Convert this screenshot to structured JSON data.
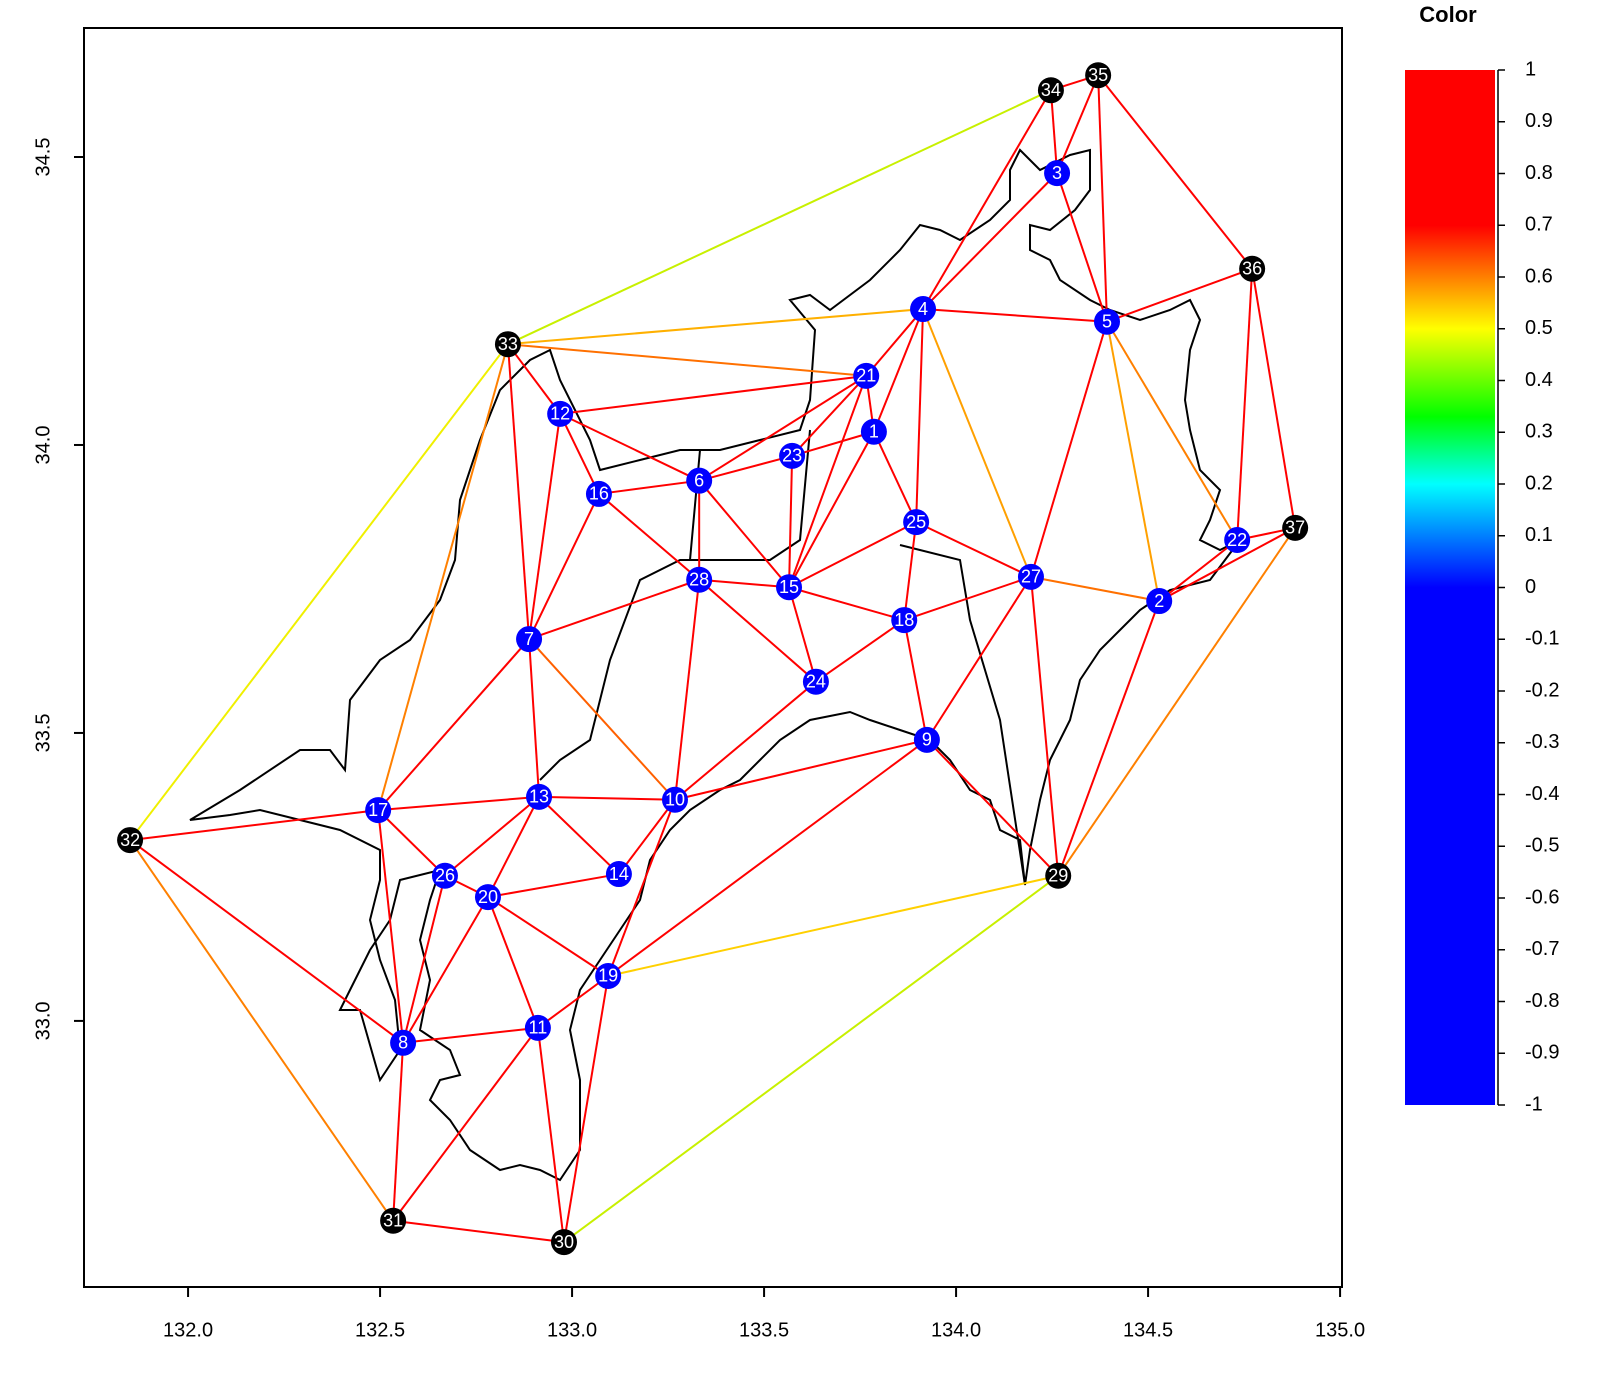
{
  "chart_data": {
    "type": "network",
    "xlim": [
      131.729,
      135.005
    ],
    "ylim": [
      32.538,
      34.724
    ],
    "xticks": [
      {
        "value": 132,
        "label": "132.0"
      },
      132.5,
      {
        "value": 133,
        "label": "133.0"
      },
      133.5,
      {
        "value": 134,
        "label": "134.0"
      },
      134.5,
      {
        "value": 135,
        "label": "135.0"
      }
    ],
    "yticks": [
      {
        "value": 33,
        "label": "33.0"
      },
      33.5,
      {
        "value": 34,
        "label": "34.0"
      },
      34.5
    ],
    "colorbar": {
      "title": "Color",
      "ticks": [
        1,
        0.9,
        0.8,
        0.7,
        0.6,
        0.5,
        0.4,
        0.3,
        0.2,
        0.1,
        0,
        -0.1,
        -0.2,
        -0.3,
        -0.4,
        -0.5,
        -0.6,
        -0.7,
        -0.8,
        -0.9,
        -1
      ],
      "range": [
        -1,
        1
      ],
      "colorscale": [
        {
          "value": -1,
          "color": "#0000ff"
        },
        {
          "value": 0,
          "color": "#0000ff"
        },
        {
          "value": 0.2,
          "color": "#00ffff"
        },
        {
          "value": 0.33,
          "color": "#00ff00"
        },
        {
          "value": 0.5,
          "color": "#ffff00"
        },
        {
          "value": 0.7,
          "color": "#ff0000"
        },
        {
          "value": 1,
          "color": "#ff0000"
        }
      ]
    },
    "nodes": [
      {
        "label": "1",
        "x": 133.786,
        "y": 34.023,
        "color": "#0000ff"
      },
      {
        "label": "2",
        "x": 134.529,
        "y": 33.729,
        "color": "#0000ff"
      },
      {
        "label": "3",
        "x": 134.263,
        "y": 34.472,
        "color": "#0000ff"
      },
      {
        "label": "4",
        "x": 133.914,
        "y": 34.236,
        "color": "#0000ff"
      },
      {
        "label": "5",
        "x": 134.393,
        "y": 34.214,
        "color": "#0000ff"
      },
      {
        "label": "6",
        "x": 133.331,
        "y": 33.938,
        "color": "#0000ff"
      },
      {
        "label": "7",
        "x": 132.888,
        "y": 33.663,
        "color": "#0000ff"
      },
      {
        "label": "8",
        "x": 132.56,
        "y": 32.962,
        "color": "#0000ff"
      },
      {
        "label": "9",
        "x": 133.924,
        "y": 33.488,
        "color": "#0000ff"
      },
      {
        "label": "10",
        "x": 133.268,
        "y": 33.384,
        "color": "#0000ff"
      },
      {
        "label": "11",
        "x": 132.911,
        "y": 32.988,
        "color": "#0000ff"
      },
      {
        "label": "12",
        "x": 132.969,
        "y": 34.054,
        "color": "#0000ff"
      },
      {
        "label": "13",
        "x": 132.914,
        "y": 33.389,
        "color": "#0000ff"
      },
      {
        "label": "14",
        "x": 133.122,
        "y": 33.255,
        "color": "#0000ff"
      },
      {
        "label": "15",
        "x": 133.565,
        "y": 33.753,
        "color": "#0000ff"
      },
      {
        "label": "16",
        "x": 133.07,
        "y": 33.915,
        "color": "#0000ff"
      },
      {
        "label": "17",
        "x": 132.495,
        "y": 33.366,
        "color": "#0000ff"
      },
      {
        "label": "18",
        "x": 133.865,
        "y": 33.696,
        "color": "#0000ff"
      },
      {
        "label": "19",
        "x": 133.094,
        "y": 33.078,
        "color": "#0000ff"
      },
      {
        "label": "20",
        "x": 132.781,
        "y": 33.215,
        "color": "#0000ff"
      },
      {
        "label": "21",
        "x": 133.766,
        "y": 34.12,
        "color": "#0000ff"
      },
      {
        "label": "22",
        "x": 134.732,
        "y": 33.835,
        "color": "#0000ff"
      },
      {
        "label": "23",
        "x": 133.573,
        "y": 33.981,
        "color": "#0000ff"
      },
      {
        "label": "24",
        "x": 133.635,
        "y": 33.589,
        "color": "#0000ff"
      },
      {
        "label": "25",
        "x": 133.896,
        "y": 33.866,
        "color": "#0000ff"
      },
      {
        "label": "26",
        "x": 132.669,
        "y": 33.252,
        "color": "#0000ff"
      },
      {
        "label": "27",
        "x": 134.195,
        "y": 33.771,
        "color": "#0000ff"
      },
      {
        "label": "28",
        "x": 133.331,
        "y": 33.766,
        "color": "#0000ff"
      },
      {
        "label": "29",
        "x": 134.266,
        "y": 33.252,
        "color": "#000000"
      },
      {
        "label": "30",
        "x": 132.979,
        "y": 32.616,
        "color": "#000000"
      },
      {
        "label": "31",
        "x": 132.534,
        "y": 32.653,
        "color": "#000000"
      },
      {
        "label": "32",
        "x": 131.849,
        "y": 33.314,
        "color": "#000000"
      },
      {
        "label": "33",
        "x": 132.833,
        "y": 34.175,
        "color": "#000000"
      },
      {
        "label": "34",
        "x": 134.247,
        "y": 34.616,
        "color": "#000000"
      },
      {
        "label": "35",
        "x": 134.37,
        "y": 34.642,
        "color": "#000000"
      },
      {
        "label": "36",
        "x": 134.771,
        "y": 34.306,
        "color": "#000000"
      },
      {
        "label": "37",
        "x": 134.883,
        "y": 33.856,
        "color": "#000000"
      }
    ],
    "edges": [
      {
        "from": "34",
        "to": "35",
        "color": "#ff0000"
      },
      {
        "from": "34",
        "to": "3",
        "color": "#ff0000"
      },
      {
        "from": "35",
        "to": "3",
        "color": "#ff0000"
      },
      {
        "from": "35",
        "to": "5",
        "color": "#ff0000"
      },
      {
        "from": "35",
        "to": "36",
        "color": "#ff0000"
      },
      {
        "from": "34",
        "to": "4",
        "color": "#ff0000"
      },
      {
        "from": "3",
        "to": "4",
        "color": "#ff0000"
      },
      {
        "from": "3",
        "to": "5",
        "color": "#ff0000"
      },
      {
        "from": "33",
        "to": "34",
        "color": "#c8f000"
      },
      {
        "from": "33",
        "to": "4",
        "color": "#ffb000"
      },
      {
        "from": "33",
        "to": "21",
        "color": "#ff7000"
      },
      {
        "from": "33",
        "to": "12",
        "color": "#ff0000"
      },
      {
        "from": "33",
        "to": "7",
        "color": "#ff0000"
      },
      {
        "from": "33",
        "to": "17",
        "color": "#ff8000"
      },
      {
        "from": "33",
        "to": "32",
        "color": "#f0f000"
      },
      {
        "from": "4",
        "to": "5",
        "color": "#ff0000"
      },
      {
        "from": "4",
        "to": "21",
        "color": "#ff0000"
      },
      {
        "from": "4",
        "to": "1",
        "color": "#ff0000"
      },
      {
        "from": "4",
        "to": "25",
        "color": "#ff0000"
      },
      {
        "from": "4",
        "to": "27",
        "color": "#ffa000"
      },
      {
        "from": "5",
        "to": "36",
        "color": "#ff0000"
      },
      {
        "from": "5",
        "to": "27",
        "color": "#ff0000"
      },
      {
        "from": "5",
        "to": "2",
        "color": "#ffa000"
      },
      {
        "from": "5",
        "to": "22",
        "color": "#ff8000"
      },
      {
        "from": "36",
        "to": "22",
        "color": "#ff0000"
      },
      {
        "from": "36",
        "to": "37",
        "color": "#ff0000"
      },
      {
        "from": "22",
        "to": "37",
        "color": "#ff0000"
      },
      {
        "from": "22",
        "to": "2",
        "color": "#ff0000"
      },
      {
        "from": "2",
        "to": "37",
        "color": "#ff0000"
      },
      {
        "from": "2",
        "to": "27",
        "color": "#ff7000"
      },
      {
        "from": "2",
        "to": "29",
        "color": "#ff0000"
      },
      {
        "from": "37",
        "to": "29",
        "color": "#ff8000"
      },
      {
        "from": "21",
        "to": "12",
        "color": "#ff0000"
      },
      {
        "from": "21",
        "to": "1",
        "color": "#ff0000"
      },
      {
        "from": "21",
        "to": "23",
        "color": "#ff0000"
      },
      {
        "from": "21",
        "to": "6",
        "color": "#ff0000"
      },
      {
        "from": "21",
        "to": "15",
        "color": "#ff0000"
      },
      {
        "from": "1",
        "to": "23",
        "color": "#ff0000"
      },
      {
        "from": "1",
        "to": "15",
        "color": "#ff0000"
      },
      {
        "from": "1",
        "to": "25",
        "color": "#ff0000"
      },
      {
        "from": "12",
        "to": "6",
        "color": "#ff0000"
      },
      {
        "from": "12",
        "to": "16",
        "color": "#ff0000"
      },
      {
        "from": "12",
        "to": "7",
        "color": "#ff0000"
      },
      {
        "from": "6",
        "to": "16",
        "color": "#ff0000"
      },
      {
        "from": "6",
        "to": "23",
        "color": "#ff0000"
      },
      {
        "from": "6",
        "to": "28",
        "color": "#ff0000"
      },
      {
        "from": "6",
        "to": "15",
        "color": "#ff0000"
      },
      {
        "from": "23",
        "to": "15",
        "color": "#ff0000"
      },
      {
        "from": "16",
        "to": "7",
        "color": "#ff0000"
      },
      {
        "from": "16",
        "to": "28",
        "color": "#ff0000"
      },
      {
        "from": "28",
        "to": "15",
        "color": "#ff0000"
      },
      {
        "from": "28",
        "to": "7",
        "color": "#ff0000"
      },
      {
        "from": "28",
        "to": "24",
        "color": "#ff0000"
      },
      {
        "from": "28",
        "to": "10",
        "color": "#ff0000"
      },
      {
        "from": "15",
        "to": "25",
        "color": "#ff0000"
      },
      {
        "from": "15",
        "to": "18",
        "color": "#ff0000"
      },
      {
        "from": "15",
        "to": "24",
        "color": "#ff0000"
      },
      {
        "from": "25",
        "to": "18",
        "color": "#ff0000"
      },
      {
        "from": "25",
        "to": "27",
        "color": "#ff0000"
      },
      {
        "from": "18",
        "to": "27",
        "color": "#ff0000"
      },
      {
        "from": "18",
        "to": "24",
        "color": "#ff0000"
      },
      {
        "from": "18",
        "to": "9",
        "color": "#ff0000"
      },
      {
        "from": "27",
        "to": "9",
        "color": "#ff0000"
      },
      {
        "from": "27",
        "to": "29",
        "color": "#ff0000"
      },
      {
        "from": "24",
        "to": "10",
        "color": "#ff0000"
      },
      {
        "from": "9",
        "to": "10",
        "color": "#ff0000"
      },
      {
        "from": "9",
        "to": "19",
        "color": "#ff0000"
      },
      {
        "from": "9",
        "to": "29",
        "color": "#ff0000"
      },
      {
        "from": "7",
        "to": "17",
        "color": "#ff0000"
      },
      {
        "from": "7",
        "to": "13",
        "color": "#ff0000"
      },
      {
        "from": "7",
        "to": "10",
        "color": "#ff6000"
      },
      {
        "from": "17",
        "to": "13",
        "color": "#ff0000"
      },
      {
        "from": "17",
        "to": "26",
        "color": "#ff0000"
      },
      {
        "from": "17",
        "to": "8",
        "color": "#ff0000"
      },
      {
        "from": "17",
        "to": "32",
        "color": "#ff0000"
      },
      {
        "from": "32",
        "to": "8",
        "color": "#ff0000"
      },
      {
        "from": "32",
        "to": "31",
        "color": "#ff8000"
      },
      {
        "from": "13",
        "to": "10",
        "color": "#ff0000"
      },
      {
        "from": "13",
        "to": "26",
        "color": "#ff0000"
      },
      {
        "from": "13",
        "to": "20",
        "color": "#ff0000"
      },
      {
        "from": "13",
        "to": "14",
        "color": "#ff0000"
      },
      {
        "from": "10",
        "to": "14",
        "color": "#ff0000"
      },
      {
        "from": "10",
        "to": "19",
        "color": "#ff0000"
      },
      {
        "from": "26",
        "to": "20",
        "color": "#ff0000"
      },
      {
        "from": "26",
        "to": "8",
        "color": "#ff0000"
      },
      {
        "from": "20",
        "to": "14",
        "color": "#ff0000"
      },
      {
        "from": "20",
        "to": "19",
        "color": "#ff0000"
      },
      {
        "from": "20",
        "to": "11",
        "color": "#ff0000"
      },
      {
        "from": "20",
        "to": "8",
        "color": "#ff0000"
      },
      {
        "from": "8",
        "to": "11",
        "color": "#ff0000"
      },
      {
        "from": "8",
        "to": "31",
        "color": "#ff0000"
      },
      {
        "from": "11",
        "to": "19",
        "color": "#ff0000"
      },
      {
        "from": "11",
        "to": "31",
        "color": "#ff0000"
      },
      {
        "from": "11",
        "to": "30",
        "color": "#ff0000"
      },
      {
        "from": "19",
        "to": "30",
        "color": "#ff0000"
      },
      {
        "from": "19",
        "to": "29",
        "color": "#ffd000"
      },
      {
        "from": "29",
        "to": "30",
        "color": "#c8f000"
      },
      {
        "from": "31",
        "to": "30",
        "color": "#ff0000"
      }
    ]
  }
}
